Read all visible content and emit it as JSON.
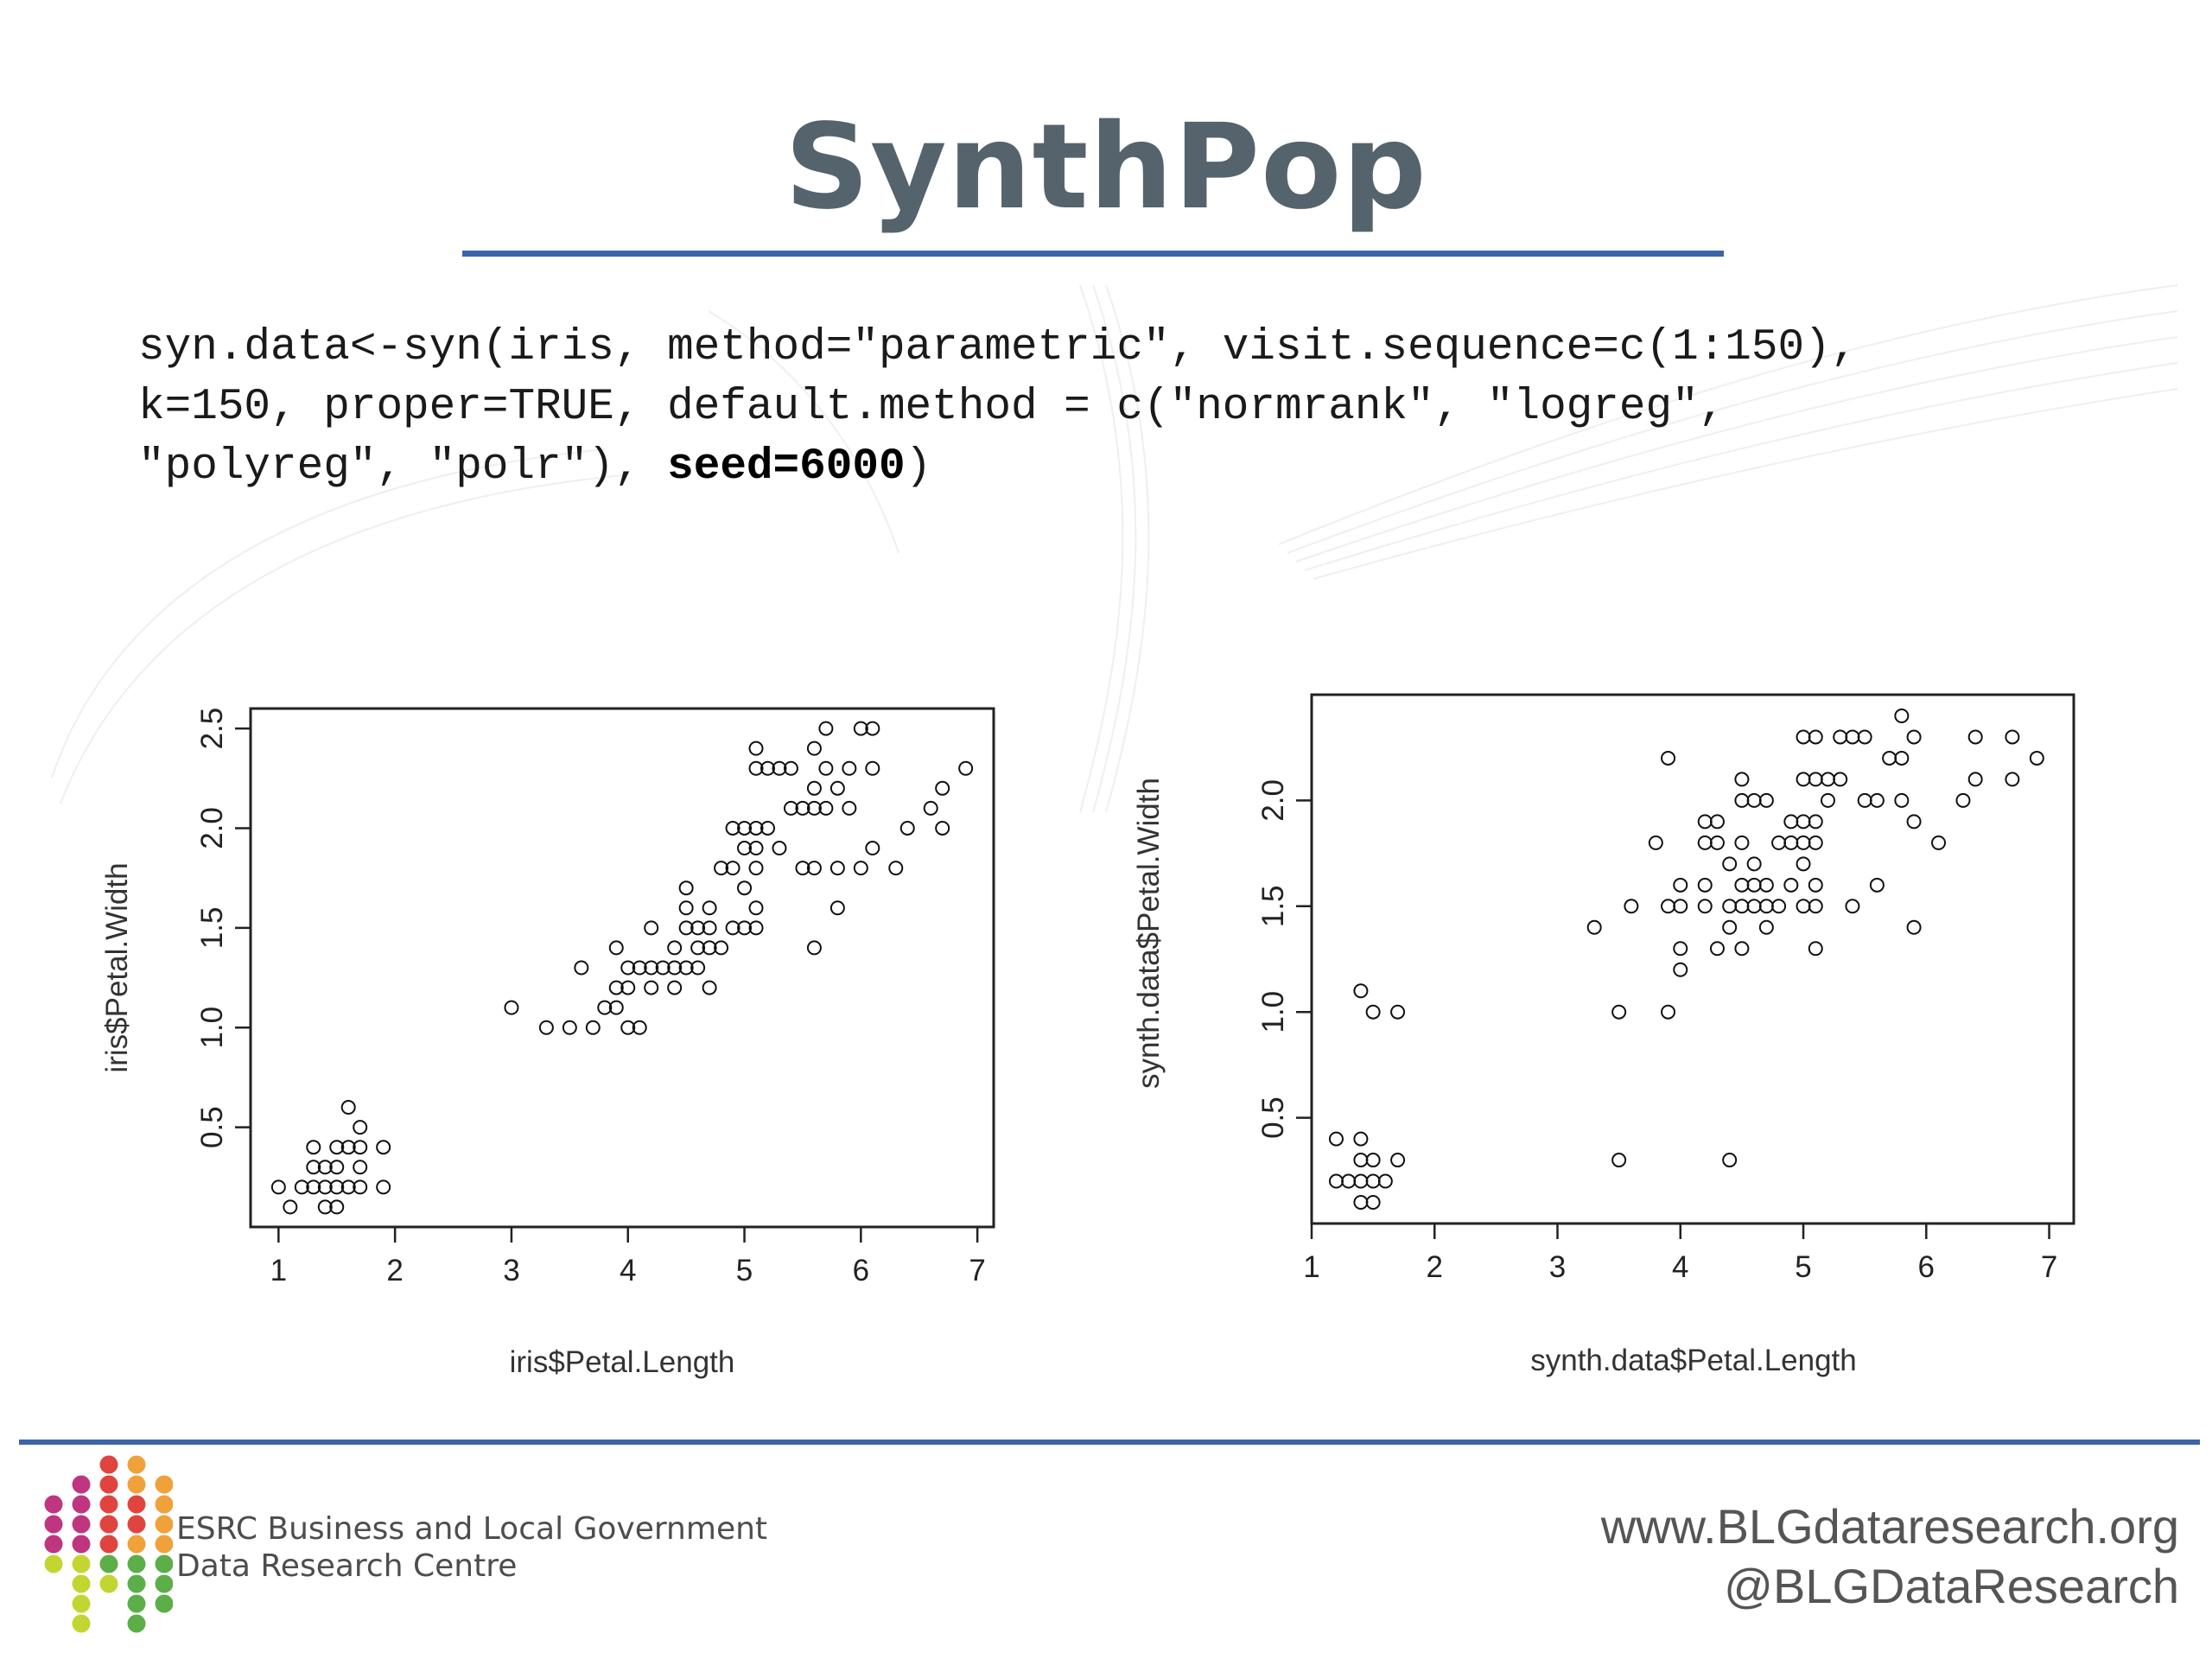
{
  "title": "SynthPop",
  "code": {
    "line1": "syn.data<-syn(iris, method=\"parametric\", visit.sequence=c(1:150),",
    "line2": "k=150, proper=TRUE, default.method = c(\"normrank\", \"logreg\",",
    "line3_start": "\"polyreg\", \"polr\"), ",
    "line3_bold": "seed=6000",
    "line3_end": ")"
  },
  "chart_data": [
    {
      "type": "scatter",
      "xlabel": "iris$Petal.Length",
      "ylabel": "iris$Petal.Width",
      "xlim": [
        0.76,
        7.14
      ],
      "ylim": [
        0.0,
        2.6
      ],
      "xticks": [
        1,
        2,
        3,
        4,
        5,
        6,
        7
      ],
      "yticks": [
        0.5,
        1.0,
        1.5,
        2.0,
        2.5
      ],
      "ytick_labels": [
        "0.5",
        "1.0",
        "1.5",
        "2.0",
        "2.5"
      ],
      "grid": false,
      "legend": "none",
      "points": [
        [
          1.0,
          0.2
        ],
        [
          1.1,
          0.1
        ],
        [
          1.2,
          0.2
        ],
        [
          1.3,
          0.2
        ],
        [
          1.3,
          0.3
        ],
        [
          1.3,
          0.4
        ],
        [
          1.4,
          0.1
        ],
        [
          1.4,
          0.2
        ],
        [
          1.4,
          0.3
        ],
        [
          1.5,
          0.1
        ],
        [
          1.5,
          0.2
        ],
        [
          1.5,
          0.3
        ],
        [
          1.5,
          0.4
        ],
        [
          1.6,
          0.2
        ],
        [
          1.6,
          0.4
        ],
        [
          1.6,
          0.6
        ],
        [
          1.7,
          0.2
        ],
        [
          1.7,
          0.3
        ],
        [
          1.7,
          0.4
        ],
        [
          1.7,
          0.5
        ],
        [
          1.9,
          0.2
        ],
        [
          1.9,
          0.4
        ],
        [
          3.0,
          1.1
        ],
        [
          3.3,
          1.0
        ],
        [
          3.5,
          1.0
        ],
        [
          3.6,
          1.3
        ],
        [
          3.7,
          1.0
        ],
        [
          3.8,
          1.1
        ],
        [
          3.9,
          1.1
        ],
        [
          3.9,
          1.2
        ],
        [
          3.9,
          1.4
        ],
        [
          4.0,
          1.0
        ],
        [
          4.0,
          1.2
        ],
        [
          4.0,
          1.3
        ],
        [
          4.1,
          1.0
        ],
        [
          4.1,
          1.3
        ],
        [
          4.2,
          1.2
        ],
        [
          4.2,
          1.3
        ],
        [
          4.2,
          1.5
        ],
        [
          4.3,
          1.3
        ],
        [
          4.4,
          1.2
        ],
        [
          4.4,
          1.3
        ],
        [
          4.4,
          1.4
        ],
        [
          4.5,
          1.3
        ],
        [
          4.5,
          1.5
        ],
        [
          4.5,
          1.6
        ],
        [
          4.5,
          1.7
        ],
        [
          4.6,
          1.3
        ],
        [
          4.6,
          1.4
        ],
        [
          4.6,
          1.5
        ],
        [
          4.7,
          1.2
        ],
        [
          4.7,
          1.4
        ],
        [
          4.7,
          1.5
        ],
        [
          4.7,
          1.6
        ],
        [
          4.8,
          1.4
        ],
        [
          4.8,
          1.8
        ],
        [
          4.9,
          1.5
        ],
        [
          4.9,
          1.8
        ],
        [
          4.9,
          2.0
        ],
        [
          5.0,
          1.5
        ],
        [
          5.0,
          1.7
        ],
        [
          5.0,
          1.9
        ],
        [
          5.0,
          2.0
        ],
        [
          5.1,
          1.5
        ],
        [
          5.1,
          1.6
        ],
        [
          5.1,
          1.8
        ],
        [
          5.1,
          1.9
        ],
        [
          5.1,
          2.0
        ],
        [
          5.1,
          2.3
        ],
        [
          5.1,
          2.4
        ],
        [
          5.2,
          2.0
        ],
        [
          5.2,
          2.3
        ],
        [
          5.3,
          1.9
        ],
        [
          5.3,
          2.3
        ],
        [
          5.4,
          2.1
        ],
        [
          5.4,
          2.3
        ],
        [
          5.5,
          1.8
        ],
        [
          5.5,
          2.1
        ],
        [
          5.6,
          1.4
        ],
        [
          5.6,
          1.8
        ],
        [
          5.6,
          2.1
        ],
        [
          5.6,
          2.2
        ],
        [
          5.6,
          2.4
        ],
        [
          5.7,
          2.1
        ],
        [
          5.7,
          2.3
        ],
        [
          5.7,
          2.5
        ],
        [
          5.8,
          1.6
        ],
        [
          5.8,
          1.8
        ],
        [
          5.8,
          2.2
        ],
        [
          5.9,
          2.1
        ],
        [
          5.9,
          2.3
        ],
        [
          6.0,
          1.8
        ],
        [
          6.0,
          2.5
        ],
        [
          6.1,
          1.9
        ],
        [
          6.1,
          2.3
        ],
        [
          6.1,
          2.5
        ],
        [
          6.3,
          1.8
        ],
        [
          6.4,
          2.0
        ],
        [
          6.6,
          2.1
        ],
        [
          6.7,
          2.0
        ],
        [
          6.7,
          2.2
        ],
        [
          6.9,
          2.3
        ]
      ]
    },
    {
      "type": "scatter",
      "xlabel": "synth.data$Petal.Length",
      "ylabel": "synth.data$Petal.Width",
      "xlim": [
        1.0,
        7.2
      ],
      "ylim": [
        0.0,
        2.5
      ],
      "xticks": [
        1,
        2,
        3,
        4,
        5,
        6,
        7
      ],
      "yticks": [
        0.5,
        1.0,
        1.5,
        2.0
      ],
      "ytick_labels": [
        "0.5",
        "1.0",
        "1.5",
        "2.0"
      ],
      "grid": false,
      "legend": "none",
      "points": [
        [
          1.2,
          0.2
        ],
        [
          1.2,
          0.4
        ],
        [
          1.3,
          0.2
        ],
        [
          1.4,
          0.1
        ],
        [
          1.4,
          0.2
        ],
        [
          1.4,
          0.3
        ],
        [
          1.4,
          0.4
        ],
        [
          1.4,
          1.1
        ],
        [
          1.5,
          0.1
        ],
        [
          1.5,
          0.2
        ],
        [
          1.5,
          0.3
        ],
        [
          1.5,
          1.0
        ],
        [
          1.6,
          0.2
        ],
        [
          1.7,
          0.3
        ],
        [
          1.7,
          1.0
        ],
        [
          3.3,
          1.4
        ],
        [
          3.5,
          0.3
        ],
        [
          3.5,
          1.0
        ],
        [
          3.6,
          1.5
        ],
        [
          3.8,
          1.8
        ],
        [
          3.9,
          1.0
        ],
        [
          3.9,
          1.5
        ],
        [
          3.9,
          2.2
        ],
        [
          4.0,
          1.2
        ],
        [
          4.0,
          1.3
        ],
        [
          4.0,
          1.5
        ],
        [
          4.0,
          1.6
        ],
        [
          4.2,
          1.5
        ],
        [
          4.2,
          1.6
        ],
        [
          4.2,
          1.8
        ],
        [
          4.2,
          1.9
        ],
        [
          4.3,
          1.3
        ],
        [
          4.3,
          1.8
        ],
        [
          4.3,
          1.9
        ],
        [
          4.4,
          0.3
        ],
        [
          4.4,
          1.4
        ],
        [
          4.4,
          1.5
        ],
        [
          4.4,
          1.7
        ],
        [
          4.5,
          1.3
        ],
        [
          4.5,
          1.5
        ],
        [
          4.5,
          1.6
        ],
        [
          4.5,
          1.8
        ],
        [
          4.5,
          2.0
        ],
        [
          4.5,
          2.1
        ],
        [
          4.6,
          1.5
        ],
        [
          4.6,
          1.6
        ],
        [
          4.6,
          1.7
        ],
        [
          4.6,
          2.0
        ],
        [
          4.7,
          1.4
        ],
        [
          4.7,
          1.5
        ],
        [
          4.7,
          1.6
        ],
        [
          4.7,
          2.0
        ],
        [
          4.8,
          1.5
        ],
        [
          4.8,
          1.8
        ],
        [
          4.9,
          1.6
        ],
        [
          4.9,
          1.8
        ],
        [
          4.9,
          1.9
        ],
        [
          5.0,
          1.5
        ],
        [
          5.0,
          1.7
        ],
        [
          5.0,
          1.8
        ],
        [
          5.0,
          1.9
        ],
        [
          5.0,
          2.1
        ],
        [
          5.0,
          2.3
        ],
        [
          5.1,
          1.3
        ],
        [
          5.1,
          1.5
        ],
        [
          5.1,
          1.6
        ],
        [
          5.1,
          1.8
        ],
        [
          5.1,
          1.9
        ],
        [
          5.1,
          2.1
        ],
        [
          5.1,
          2.3
        ],
        [
          5.2,
          2.0
        ],
        [
          5.2,
          2.1
        ],
        [
          5.3,
          2.1
        ],
        [
          5.3,
          2.3
        ],
        [
          5.4,
          1.5
        ],
        [
          5.4,
          2.3
        ],
        [
          5.5,
          2.0
        ],
        [
          5.5,
          2.3
        ],
        [
          5.6,
          1.6
        ],
        [
          5.6,
          2.0
        ],
        [
          5.7,
          2.2
        ],
        [
          5.8,
          2.0
        ],
        [
          5.8,
          2.2
        ],
        [
          5.8,
          2.4
        ],
        [
          5.9,
          1.4
        ],
        [
          5.9,
          1.9
        ],
        [
          5.9,
          2.3
        ],
        [
          6.1,
          1.8
        ],
        [
          6.3,
          2.0
        ],
        [
          6.4,
          2.1
        ],
        [
          6.4,
          2.3
        ],
        [
          6.7,
          2.1
        ],
        [
          6.7,
          2.3
        ],
        [
          6.9,
          2.2
        ]
      ]
    }
  ],
  "footer": {
    "org_line1": "ESRC Business and Local Government",
    "org_line2": "Data Research Centre",
    "website": "www.BLGdataresearch.org",
    "twitter": "@BLGDataResearch"
  },
  "colors": {
    "title": "#55636c",
    "rule": "#3d64a9",
    "logo_magenta": "#c0357f",
    "logo_red": "#e0443e",
    "logo_orange": "#f0a13a",
    "logo_yellowgreen": "#c3d531",
    "logo_green": "#5bae48"
  }
}
